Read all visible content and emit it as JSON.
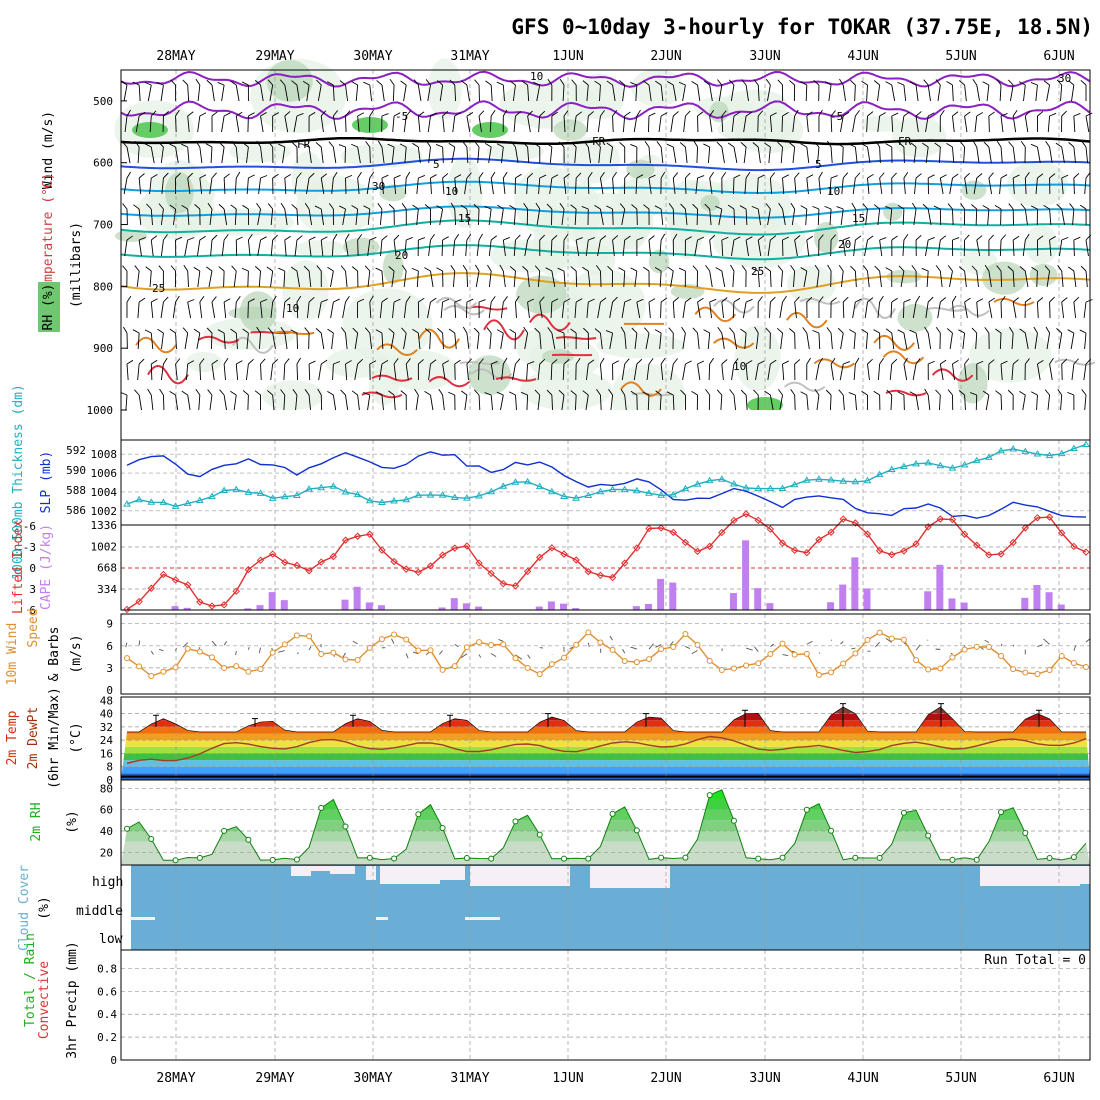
{
  "title": "GFS 0~10day 3-hourly for TOKAR (37.75E, 18.5N)",
  "dates": [
    "28MAY",
    "29MAY",
    "30MAY",
    "31MAY",
    "1JUN",
    "2JUN",
    "3JUN",
    "4JUN",
    "5JUN",
    "6JUN"
  ],
  "colors": {
    "slp": "#1030d0",
    "thickness": "#20b0c0",
    "lifted": "#e03030",
    "cape": "#c080f0",
    "wind": "#e09030",
    "temp": "#d03010",
    "rh": "#20c020",
    "cloud": "#6aaed6",
    "cloud_white": "#f4f0f6",
    "purple": "#8a20c0",
    "blue": "#2050e0",
    "cyan": "#10a0e0",
    "teal": "#10b0a0",
    "orange": "#e0a020"
  },
  "panels": {
    "upper": {
      "ylabel_wind": "Wind (m/s)",
      "ylabel_temp": "Temperature (°C)",
      "ylabel_rh": "RH (%)",
      "ylabel_units": "(millibars)",
      "yticks": [
        "500",
        "600",
        "700",
        "800",
        "900",
        "1000"
      ],
      "contour_labels": [
        "-5",
        "-5",
        "FR",
        "FR",
        "FR",
        "5",
        "5",
        "10",
        "10",
        "15",
        "15",
        "20",
        "20",
        "25",
        "25",
        "10",
        "10",
        "10",
        "30",
        "30"
      ]
    },
    "slp": {
      "ylabel_left": "1000-500mb Thickness (dm)",
      "ylabel_right": "SLP (mb)",
      "left_ticks": [
        "592",
        "590",
        "588",
        "586"
      ],
      "right_ticks": [
        "1008",
        "1006",
        "1004",
        "1002"
      ]
    },
    "cape": {
      "ylabel_left": "Lifted Index",
      "ylabel_right": "CAPE (J/kg)",
      "left_ticks": [
        "-6",
        "-3",
        "0",
        "3",
        "6"
      ],
      "right_ticks": [
        "1336",
        "1002",
        "668",
        "334"
      ]
    },
    "wind": {
      "ylabel1": "10m Wind",
      "ylabel2": "Speed",
      "ylabel3": "& Barbs",
      "ylabel_units": "(m/s)",
      "yticks": [
        "9",
        "6",
        "3",
        "0"
      ]
    },
    "temp": {
      "ylabel1": "2m Temp",
      "ylabel2": "2m DewPt",
      "ylabel3": "(6hr Min/Max)",
      "ylabel_units": "(°C)",
      "yticks": [
        "48",
        "40",
        "32",
        "24",
        "16",
        "8",
        "0"
      ]
    },
    "rh": {
      "ylabel": "2m RH",
      "ylabel_units": "(%)",
      "yticks": [
        "80",
        "60",
        "40",
        "20"
      ]
    },
    "cloud": {
      "ylabel": "Cloud Cover",
      "ylabel_units": "(%)",
      "levels": [
        "high",
        "middle",
        "low"
      ]
    },
    "precip": {
      "ylabel1": "Total / Rain",
      "ylabel2": "Convective",
      "ylabel_units": "3hr Precip (mm)",
      "yticks": [
        "0.8",
        "0.6",
        "0.4",
        "0.2",
        "0"
      ],
      "run_total": "Run Total = 0"
    }
  },
  "chart_data": [
    {
      "type": "line",
      "name": "SLP",
      "title": "SLP (mb)",
      "x": [
        "28MAY",
        "29MAY",
        "30MAY",
        "31MAY",
        "1JUN",
        "2JUN",
        "3JUN",
        "4JUN",
        "5JUN",
        "6JUN"
      ],
      "series": [
        {
          "name": "SLP (mb)",
          "values": [
            1007.2,
            1006.5,
            1007.0,
            1007.4,
            1006.8,
            1004.8,
            1003.6,
            1003.4,
            1001.8,
            1001.9
          ]
        },
        {
          "name": "1000-500mb Thickness (dm)",
          "values": [
            586.3,
            587.5,
            587.9,
            586.9,
            588.3,
            587.5,
            588.5,
            588.5,
            590.0,
            591.3
          ]
        }
      ]
    },
    {
      "type": "bar",
      "name": "CAPE",
      "title": "CAPE (J/kg)",
      "categories": [
        "28MAY",
        "29MAY",
        "30MAY",
        "31MAY",
        "1JUN",
        "2JUN",
        "3JUN",
        "4JUN",
        "5JUN",
        "6JUN"
      ],
      "values": [
        0,
        80,
        420,
        200,
        150,
        150,
        1050,
        420,
        900,
        400
      ],
      "series_li": {
        "name": "Lifted Index",
        "values": [
          3.5,
          3.5,
          -3.0,
          -1.5,
          0.5,
          -1.0,
          -5.5,
          -4.5,
          -4.0,
          -4.5
        ]
      }
    },
    {
      "type": "line",
      "name": "10m Wind Speed",
      "categories": [
        "28MAY",
        "29MAY",
        "30MAY",
        "31MAY",
        "1JUN",
        "2JUN",
        "3JUN",
        "4JUN",
        "5JUN",
        "6JUN"
      ],
      "values": [
        4.5,
        3.5,
        5.5,
        6.0,
        4.5,
        5.5,
        4.5,
        4.0,
        6.0,
        4.0
      ]
    },
    {
      "type": "area",
      "name": "2m Temp",
      "categories": [
        "28MAY",
        "29MAY",
        "30MAY",
        "31MAY",
        "1JUN",
        "2JUN",
        "3JUN",
        "4JUN",
        "5JUN",
        "6JUN"
      ],
      "series": [
        {
          "name": "2m Temp max",
          "values": [
            37,
            35,
            37,
            37,
            38,
            38,
            40,
            44,
            44,
            40
          ]
        },
        {
          "name": "2m Temp min",
          "values": [
            29,
            29,
            29,
            29,
            29,
            29,
            29,
            29,
            29,
            29
          ]
        },
        {
          "name": "2m DewPt",
          "values": [
            8,
            20,
            22,
            20,
            19,
            20,
            24,
            18,
            20,
            22
          ]
        }
      ]
    },
    {
      "type": "area",
      "name": "2m RH",
      "categories": [
        "28MAY",
        "29MAY",
        "30MAY",
        "31MAY",
        "1JUN",
        "2JUN",
        "3JUN",
        "4JUN",
        "5JUN",
        "6JUN"
      ],
      "values": [
        48,
        45,
        70,
        65,
        55,
        65,
        82,
        68,
        62,
        65
      ]
    },
    {
      "type": "area",
      "name": "3hr Precip",
      "categories": [
        "28MAY",
        "29MAY",
        "30MAY",
        "31MAY",
        "1JUN",
        "2JUN",
        "3JUN",
        "4JUN",
        "5JUN",
        "6JUN"
      ],
      "values": [
        0,
        0,
        0,
        0,
        0,
        0,
        0,
        0,
        0,
        0
      ],
      "ylim": [
        0,
        0.9
      ]
    }
  ]
}
